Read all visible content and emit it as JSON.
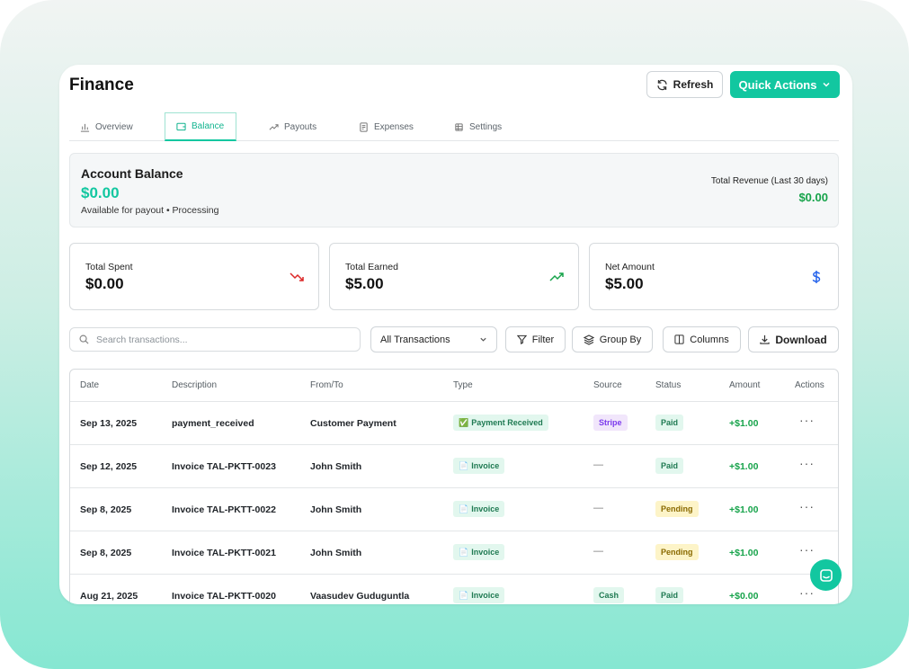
{
  "colors": {
    "accent": "#12c7a0",
    "positive": "#16a34a",
    "negative": "#dc2626"
  },
  "header": {
    "title": "Finance",
    "refresh_label": "Refresh",
    "quick_actions_label": "Quick Actions"
  },
  "tabs": [
    {
      "label": "Overview",
      "icon": "bar-chart-icon",
      "active": false
    },
    {
      "label": "Balance",
      "icon": "wallet-icon",
      "active": true
    },
    {
      "label": "Payouts",
      "icon": "trending-up-icon",
      "active": false
    },
    {
      "label": "Expenses",
      "icon": "receipt-icon",
      "active": false
    },
    {
      "label": "Settings",
      "icon": "gear-icon",
      "active": false
    }
  ],
  "balance": {
    "title": "Account Balance",
    "amount": "$0.00",
    "subtitle": "Available for payout • Processing",
    "revenue_label": "Total Revenue (Last 30 days)",
    "revenue_amount": "$0.00"
  },
  "stats": [
    {
      "label": "Total Spent",
      "value": "$0.00",
      "icon": "trending-down-icon"
    },
    {
      "label": "Total Earned",
      "value": "$5.00",
      "icon": "trending-up-icon"
    },
    {
      "label": "Net Amount",
      "value": "$5.00",
      "icon": "dollar-icon"
    }
  ],
  "toolbar": {
    "search_placeholder": "Search transactions...",
    "filter_select_value": "All Transactions",
    "filter_label": "Filter",
    "group_by_label": "Group By",
    "columns_label": "Columns",
    "download_label": "Download"
  },
  "table": {
    "columns": [
      "Date",
      "Description",
      "From/To",
      "Type",
      "Source",
      "Status",
      "Amount",
      "Actions"
    ],
    "rows": [
      {
        "date": "Sep 13, 2025",
        "description": "payment_received",
        "from_to": "Customer Payment",
        "type_icon": "✅",
        "type": "Payment Received",
        "source": "Stripe",
        "status": "Paid",
        "amount": "+$1.00"
      },
      {
        "date": "Sep 12, 2025",
        "description": "Invoice TAL-PKTT-0023",
        "from_to": "John Smith",
        "type_icon": "📄",
        "type": "Invoice",
        "source": "—",
        "status": "Paid",
        "amount": "+$1.00"
      },
      {
        "date": "Sep 8, 2025",
        "description": "Invoice TAL-PKTT-0022",
        "from_to": "John Smith",
        "type_icon": "📄",
        "type": "Invoice",
        "source": "—",
        "status": "Pending",
        "amount": "+$1.00"
      },
      {
        "date": "Sep 8, 2025",
        "description": "Invoice TAL-PKTT-0021",
        "from_to": "John Smith",
        "type_icon": "📄",
        "type": "Invoice",
        "source": "—",
        "status": "Pending",
        "amount": "+$1.00"
      },
      {
        "date": "Aug 21, 2025",
        "description": "Invoice TAL-PKTT-0020",
        "from_to": "Vaasudev Guduguntla",
        "type_icon": "📄",
        "type": "Invoice",
        "source": "Cash",
        "status": "Paid",
        "amount": "+$0.00"
      }
    ],
    "actions_glyph": "···"
  }
}
